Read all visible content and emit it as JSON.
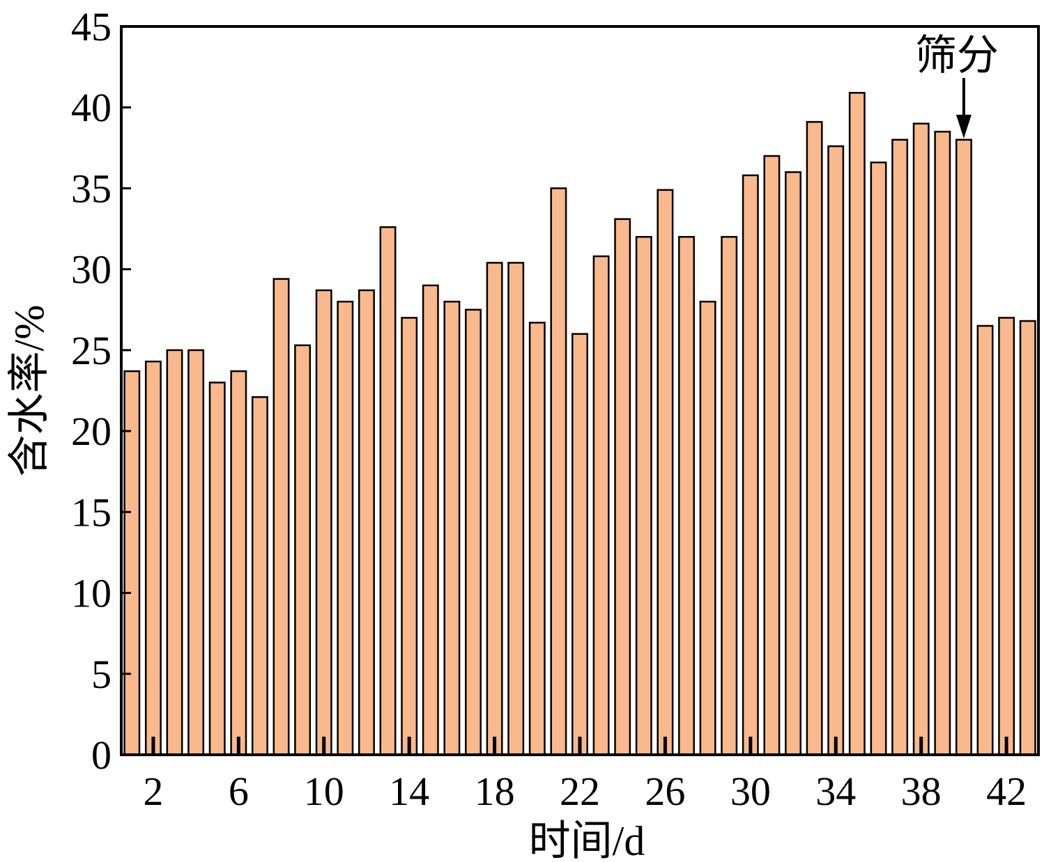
{
  "chart_data": {
    "type": "bar",
    "title": "",
    "xlabel": "时间/d",
    "ylabel": "含水率/%",
    "ylim": [
      0,
      45
    ],
    "xlim": [
      0.5,
      43.5
    ],
    "yticks": [
      0,
      5,
      10,
      15,
      20,
      25,
      30,
      35,
      40,
      45
    ],
    "xticks": [
      2,
      6,
      10,
      14,
      18,
      22,
      26,
      30,
      34,
      38,
      42
    ],
    "grid": false,
    "legend": "none",
    "x": [
      1,
      2,
      3,
      4,
      5,
      6,
      7,
      8,
      9,
      10,
      11,
      12,
      13,
      14,
      15,
      16,
      17,
      18,
      19,
      20,
      21,
      22,
      23,
      24,
      25,
      26,
      27,
      28,
      29,
      30,
      31,
      32,
      33,
      34,
      35,
      36,
      37,
      38,
      39,
      40,
      41,
      42,
      43
    ],
    "values": [
      23.7,
      24.3,
      25.0,
      25.0,
      23.0,
      23.7,
      22.1,
      29.4,
      25.3,
      28.7,
      28.0,
      28.7,
      32.6,
      27.0,
      29.0,
      28.0,
      27.5,
      30.4,
      30.4,
      26.7,
      35.0,
      26.0,
      30.8,
      33.1,
      32.0,
      34.9,
      32.0,
      28.0,
      32.0,
      35.8,
      37.0,
      36.0,
      39.1,
      37.6,
      40.9,
      36.6,
      38.0,
      39.0,
      38.5,
      38.0,
      26.5,
      27.0,
      26.8
    ],
    "bar_color": "#F9B98D",
    "bar_edge_color": "#000000",
    "annotations": [
      {
        "text": "筛分",
        "x": 40,
        "y": 38.0
      }
    ]
  }
}
